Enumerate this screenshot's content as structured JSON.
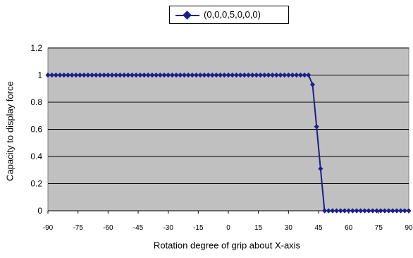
{
  "chart_data": {
    "type": "line",
    "legend": {
      "label": "(0,0,0,5,0,0,0)",
      "position": "top-center"
    },
    "xlabel": "Rotation degree of grip about X-axis",
    "ylabel": "Capacity to display force",
    "xlim": [
      -90,
      90
    ],
    "ylim": [
      0,
      1.2
    ],
    "x_ticks": [
      "-90",
      "-75",
      "-60",
      "-45",
      "-30",
      "-15",
      "0",
      "15",
      "30",
      "45",
      "60",
      "75",
      "90"
    ],
    "y_ticks": [
      "0",
      "0.2",
      "0.4",
      "0.6",
      "0.8",
      "1",
      "1.2"
    ],
    "grid": "horizontal",
    "plot_background": "#c0c0c0",
    "series": [
      {
        "name": "(0,0,0,5,0,0,0)",
        "color": "#1b1f8a",
        "marker": "diamond",
        "x": [
          -90,
          -88,
          -86,
          -84,
          -82,
          -80,
          -78,
          -76,
          -74,
          -72,
          -70,
          -68,
          -66,
          -64,
          -62,
          -60,
          -58,
          -56,
          -54,
          -52,
          -50,
          -48,
          -46,
          -44,
          -42,
          -40,
          -38,
          -36,
          -34,
          -32,
          -30,
          -28,
          -26,
          -24,
          -22,
          -20,
          -18,
          -16,
          -14,
          -12,
          -10,
          -8,
          -6,
          -4,
          -2,
          0,
          2,
          4,
          6,
          8,
          10,
          12,
          14,
          16,
          18,
          20,
          22,
          24,
          26,
          28,
          30,
          32,
          34,
          36,
          38,
          40,
          42,
          44,
          46,
          48,
          50,
          52,
          54,
          56,
          58,
          60,
          62,
          64,
          66,
          68,
          70,
          72,
          74,
          76,
          78,
          80,
          82,
          84,
          86,
          88,
          90
        ],
        "y": [
          1,
          1,
          1,
          1,
          1,
          1,
          1,
          1,
          1,
          1,
          1,
          1,
          1,
          1,
          1,
          1,
          1,
          1,
          1,
          1,
          1,
          1,
          1,
          1,
          1,
          1,
          1,
          1,
          1,
          1,
          1,
          1,
          1,
          1,
          1,
          1,
          1,
          1,
          1,
          1,
          1,
          1,
          1,
          1,
          1,
          1,
          1,
          1,
          1,
          1,
          1,
          1,
          1,
          1,
          1,
          1,
          1,
          1,
          1,
          1,
          1,
          1,
          1,
          1,
          1,
          1,
          0.93,
          0.62,
          0.31,
          0,
          0,
          0,
          0,
          0,
          0,
          0,
          0,
          0,
          0,
          0,
          0,
          0,
          0,
          0,
          0,
          0,
          0,
          0,
          0,
          0,
          0
        ]
      }
    ]
  }
}
